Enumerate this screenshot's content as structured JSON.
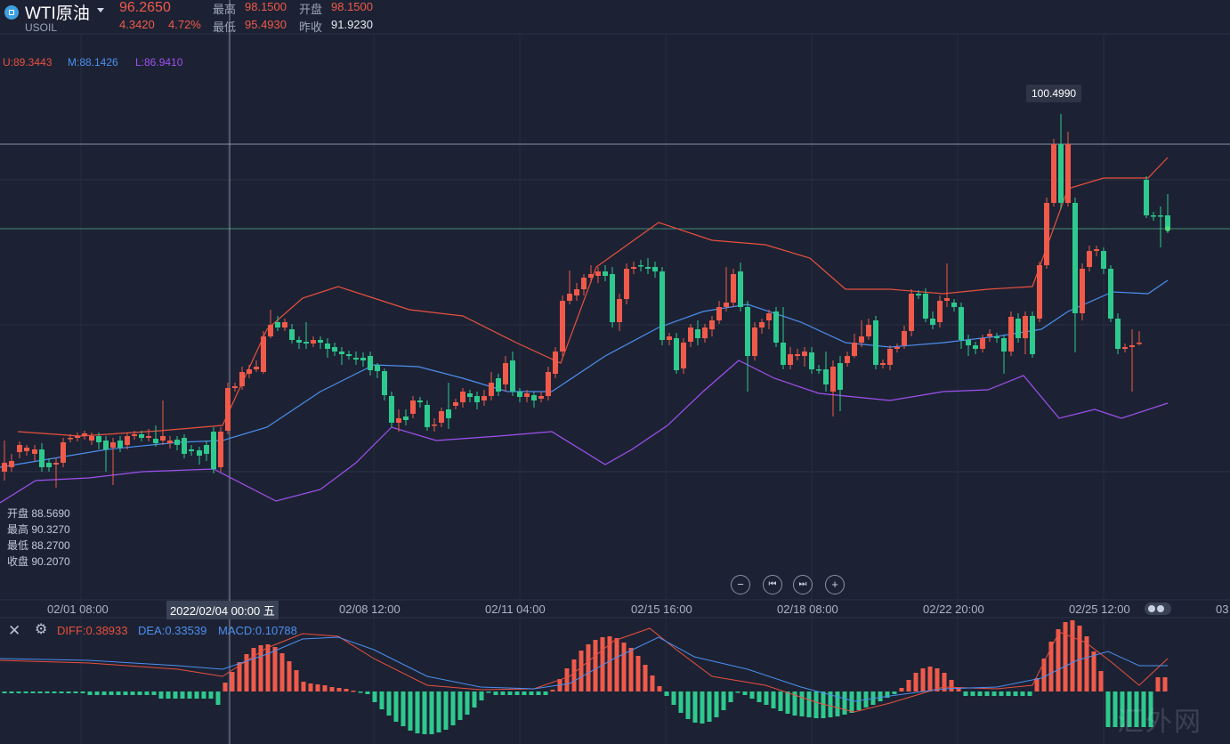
{
  "header": {
    "title": "WTI原油",
    "symbol": "USOIL",
    "price": "96.2650",
    "change": "4.3420",
    "change_pct": "4.72%",
    "high_label": "最高",
    "high": "98.1500",
    "open_label": "开盘",
    "open": "98.1500",
    "low_label": "最低",
    "low": "95.4930",
    "prev_label": "昨收",
    "prev_close": "91.9230"
  },
  "boll": {
    "upper": "U:89.3443",
    "middle": "M:88.1426",
    "lower": "L:86.9410"
  },
  "crosshair_ohlc": {
    "open": "开盘 88.5690",
    "high": "最高 90.3270",
    "low": "最低 88.2700",
    "close": "收盘 90.2070"
  },
  "max_tooltip": "100.4990",
  "xaxis": {
    "labels": [
      "02/01 08:00",
      "02/08 12:00",
      "02/11 04:00",
      "02/15 16:00",
      "02/18 08:00",
      "02/22 20:00",
      "02/25 12:00",
      "03"
    ],
    "crosshair": "2022/02/04 00:00 五"
  },
  "zoom": {
    "minus": "−",
    "prev": "⏮",
    "next": "⏭",
    "plus": "+"
  },
  "macd": {
    "diff": "DIFF:0.38933",
    "dea": "DEA:0.33539",
    "macd": "MACD:0.10788"
  },
  "colors": {
    "up": "#f05a4a",
    "down": "#2ec98e",
    "upper": "#e8503f",
    "middle": "#4d8ff0",
    "lower": "#a050f0",
    "bg": "#1c2233"
  },
  "icons": {
    "close": "close-icon",
    "settings": "settings-icon",
    "dropdown": "chevron-down-icon"
  },
  "watermark": "汇外网"
}
